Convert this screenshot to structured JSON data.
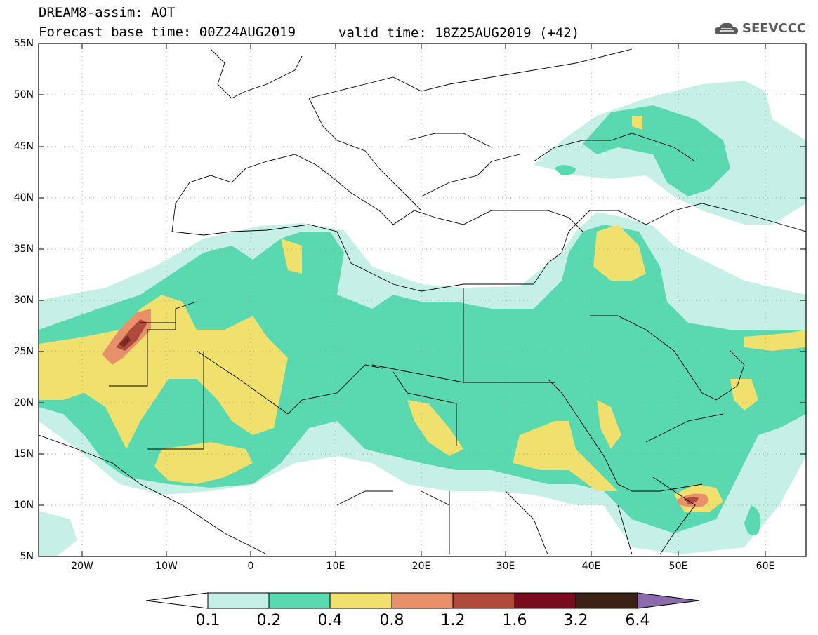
{
  "header": {
    "line1": "DREAM8-assim: AOT",
    "line2": "Forecast base time: 00Z24AUG2019",
    "valid": "valid time: 18Z25AUG2019 (+42)",
    "logo_text": "SEEVCCC"
  },
  "axes": {
    "lat_labels": [
      "55N",
      "50N",
      "45N",
      "40N",
      "35N",
      "30N",
      "25N",
      "20N",
      "15N",
      "10N",
      "5N"
    ],
    "lon_labels": [
      "20W",
      "10W",
      "0",
      "10E",
      "20E",
      "30E",
      "40E",
      "50E",
      "60E"
    ]
  },
  "colorbar": {
    "labels": [
      "0.1",
      "0.2",
      "0.4",
      "0.8",
      "1.2",
      "1.6",
      "3.2",
      "6.4"
    ],
    "colors": [
      "#c6f0e6",
      "#5ad8b0",
      "#f0e06e",
      "#e8906a",
      "#b04a3a",
      "#7a0a1e",
      "#3a2216",
      "#8a6aaa"
    ],
    "under_color": "#ffffff",
    "over_color": "#8a6aaa"
  },
  "fill_colors": {
    "level1": "#c6f0e6",
    "level2": "#5ad8b0",
    "level3": "#f0e06e",
    "level4": "#e8906a",
    "level5": "#b04a3a",
    "level6": "#7a2a22"
  }
}
